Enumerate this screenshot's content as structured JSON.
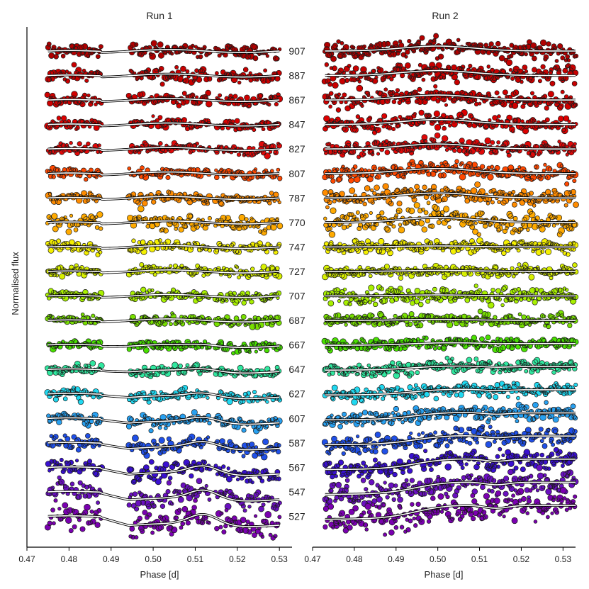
{
  "chart_data": {
    "type": "scatter",
    "title": "",
    "ylabel": "Normalised flux",
    "panels": [
      {
        "id": "run1",
        "title": "Run 1",
        "xlabel": "Phase [d]",
        "xlim": [
          0.47,
          0.533
        ],
        "xticks": [
          0.47,
          0.48,
          0.49,
          0.5,
          0.51,
          0.52,
          0.53
        ],
        "xtick_labels": [
          "0.47",
          "0.48",
          "0.49",
          "0.50",
          "0.51",
          "0.52",
          "0.53"
        ],
        "data_gaps": [
          [
            0.4878,
            0.4942
          ],
          [
            0.5135,
            0.5148
          ]
        ],
        "coverage": [
          0.475,
          0.53
        ]
      },
      {
        "id": "run2",
        "title": "Run 2",
        "xlabel": "Phase [d]",
        "xlim": [
          0.47,
          0.533
        ],
        "xticks": [
          0.47,
          0.48,
          0.49,
          0.5,
          0.51,
          0.52,
          0.53
        ],
        "xtick_labels": [
          "0.47",
          "0.48",
          "0.49",
          "0.50",
          "0.51",
          "0.52",
          "0.53"
        ],
        "data_gaps": [],
        "coverage": [
          0.473,
          0.533
        ]
      }
    ],
    "wavelength_channels": [
      "907",
      "887",
      "867",
      "847",
      "827",
      "807",
      "787",
      "770",
      "747",
      "727",
      "707",
      "687",
      "667",
      "647",
      "627",
      "607",
      "587",
      "567",
      "547",
      "527"
    ],
    "series_colors": [
      "#b00000",
      "#c80000",
      "#d00000",
      "#dc0000",
      "#e00808",
      "#ff4800",
      "#ff8c00",
      "#ffaa00",
      "#f4f000",
      "#d8f000",
      "#a8f000",
      "#78e000",
      "#48e000",
      "#30e8a0",
      "#20d8f0",
      "#28a0f0",
      "#2050e8",
      "#3a10d0",
      "#6a10c0",
      "#7a00b0"
    ],
    "series": [
      {
        "name": "907",
        "run1_noise": 0.0007,
        "run2_noise": 0.0009
      },
      {
        "name": "887",
        "run1_noise": 0.0007,
        "run2_noise": 0.0009
      },
      {
        "name": "867",
        "run1_noise": 0.0006,
        "run2_noise": 0.0008
      },
      {
        "name": "847",
        "run1_noise": 0.0005,
        "run2_noise": 0.0007
      },
      {
        "name": "827",
        "run1_noise": 0.0005,
        "run2_noise": 0.0007
      },
      {
        "name": "807",
        "run1_noise": 0.0005,
        "run2_noise": 0.0007
      },
      {
        "name": "787",
        "run1_noise": 0.0005,
        "run2_noise": 0.0008
      },
      {
        "name": "770",
        "run1_noise": 0.0009,
        "run2_noise": 0.0011
      },
      {
        "name": "747",
        "run1_noise": 0.0005,
        "run2_noise": 0.0006
      },
      {
        "name": "727",
        "run1_noise": 0.0005,
        "run2_noise": 0.0006
      },
      {
        "name": "707",
        "run1_noise": 0.0005,
        "run2_noise": 0.0008
      },
      {
        "name": "687",
        "run1_noise": 0.0005,
        "run2_noise": 0.0006
      },
      {
        "name": "667",
        "run1_noise": 0.0005,
        "run2_noise": 0.0006
      },
      {
        "name": "647",
        "run1_noise": 0.0005,
        "run2_noise": 0.0006
      },
      {
        "name": "627",
        "run1_noise": 0.0006,
        "run2_noise": 0.0007
      },
      {
        "name": "607",
        "run1_noise": 0.0006,
        "run2_noise": 0.0007
      },
      {
        "name": "587",
        "run1_noise": 0.0007,
        "run2_noise": 0.0008
      },
      {
        "name": "567",
        "run1_noise": 0.0008,
        "run2_noise": 0.001
      },
      {
        "name": "547",
        "run1_noise": 0.0011,
        "run2_noise": 0.0012
      },
      {
        "name": "527",
        "run1_noise": 0.0013,
        "run2_noise": 0.0015
      }
    ]
  }
}
